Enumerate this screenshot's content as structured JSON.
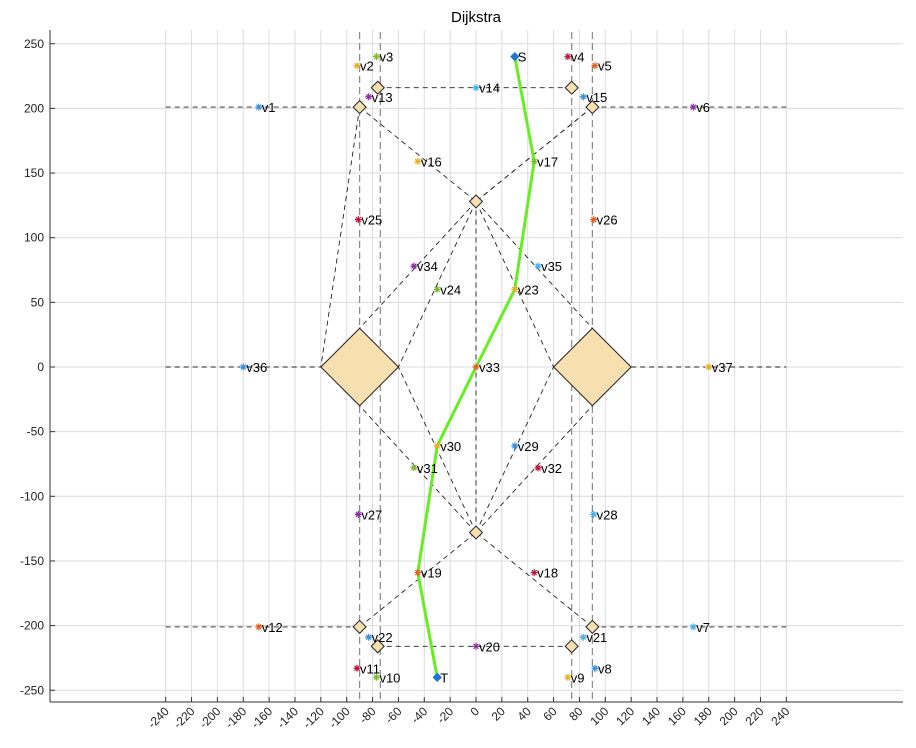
{
  "chart_data": {
    "type": "scatter",
    "title": "Dijkstra",
    "xlabel": "",
    "ylabel": "",
    "xlim": [
      -250,
      250
    ],
    "ylim": [
      -260,
      260
    ],
    "xticks": [
      -240,
      -220,
      -200,
      -180,
      -160,
      -140,
      -120,
      -100,
      -80,
      -60,
      -40,
      -20,
      0,
      20,
      40,
      60,
      80,
      100,
      120,
      140,
      160,
      180,
      200,
      220,
      240
    ],
    "yticks": [
      -250,
      -200,
      -150,
      -100,
      -50,
      0,
      50,
      100,
      150,
      200,
      250
    ],
    "grid": true,
    "colors": {
      "path": "#66ee22",
      "obstacle_fill": "#f7dfb0",
      "endpoint": "#1f77d4"
    },
    "points": [
      {
        "label": "S",
        "x": 30,
        "y": 240,
        "color": "#1f77d4"
      },
      {
        "label": "T",
        "x": -30,
        "y": -240,
        "color": "#1f77d4"
      },
      {
        "label": "v1",
        "x": -168,
        "y": 201,
        "color": "#3b8fd9"
      },
      {
        "label": "v2",
        "x": -92,
        "y": 233,
        "color": "#e8b020"
      },
      {
        "label": "v3",
        "x": -77,
        "y": 240,
        "color": "#7db930"
      },
      {
        "label": "v4",
        "x": 71,
        "y": 240,
        "color": "#c0143c"
      },
      {
        "label": "v5",
        "x": 92,
        "y": 233,
        "color": "#e06020"
      },
      {
        "label": "v6",
        "x": 168,
        "y": 201,
        "color": "#8e2da8"
      },
      {
        "label": "v7",
        "x": 168,
        "y": -201,
        "color": "#4ab0e8"
      },
      {
        "label": "v8",
        "x": 92,
        "y": -233,
        "color": "#3b8fd9"
      },
      {
        "label": "v9",
        "x": 71,
        "y": -240,
        "color": "#e8b020"
      },
      {
        "label": "v10",
        "x": -77,
        "y": -240,
        "color": "#7db930"
      },
      {
        "label": "v11",
        "x": -92,
        "y": -233,
        "color": "#c0143c"
      },
      {
        "label": "v12",
        "x": -168,
        "y": -201,
        "color": "#e06020"
      },
      {
        "label": "v13",
        "x": -83,
        "y": 209,
        "color": "#8e2da8"
      },
      {
        "label": "v14",
        "x": 0,
        "y": 216,
        "color": "#4ab0e8"
      },
      {
        "label": "v15",
        "x": 83,
        "y": 209,
        "color": "#3b8fd9"
      },
      {
        "label": "v16",
        "x": -45,
        "y": 159,
        "color": "#e8b020"
      },
      {
        "label": "v17",
        "x": 45,
        "y": 159,
        "color": "#7db930"
      },
      {
        "label": "v18",
        "x": 45,
        "y": -159,
        "color": "#c0143c"
      },
      {
        "label": "v19",
        "x": -45,
        "y": -159,
        "color": "#e06020"
      },
      {
        "label": "v20",
        "x": 0,
        "y": -216,
        "color": "#8e2da8"
      },
      {
        "label": "v21",
        "x": 83,
        "y": -209,
        "color": "#4ab0e8"
      },
      {
        "label": "v22",
        "x": -83,
        "y": -209,
        "color": "#3b8fd9"
      },
      {
        "label": "v23",
        "x": 30,
        "y": 60,
        "color": "#e8b020"
      },
      {
        "label": "v24",
        "x": -30,
        "y": 60,
        "color": "#7db930"
      },
      {
        "label": "v25",
        "x": -91,
        "y": 114,
        "color": "#c0143c"
      },
      {
        "label": "v26",
        "x": 91,
        "y": 114,
        "color": "#e06020"
      },
      {
        "label": "v27",
        "x": -91,
        "y": -114,
        "color": "#8e2da8"
      },
      {
        "label": "v28",
        "x": 91,
        "y": -114,
        "color": "#4ab0e8"
      },
      {
        "label": "v29",
        "x": 30,
        "y": -61,
        "color": "#3b8fd9"
      },
      {
        "label": "v30",
        "x": -30,
        "y": -61,
        "color": "#e8b020"
      },
      {
        "label": "v31",
        "x": -48,
        "y": -78,
        "color": "#7db930"
      },
      {
        "label": "v32",
        "x": 48,
        "y": -78,
        "color": "#c0143c"
      },
      {
        "label": "v33",
        "x": 0,
        "y": 0,
        "color": "#e06020"
      },
      {
        "label": "v34",
        "x": -48,
        "y": 78,
        "color": "#8e2da8"
      },
      {
        "label": "v35",
        "x": 48,
        "y": 78,
        "color": "#4ab0e8"
      },
      {
        "label": "v36",
        "x": -180,
        "y": 0,
        "color": "#3b8fd9"
      },
      {
        "label": "v37",
        "x": 180,
        "y": 0,
        "color": "#e8b020"
      }
    ],
    "obstacles": [
      {
        "cx": -90,
        "cy": 0,
        "r": 30
      },
      {
        "cx": 90,
        "cy": 0,
        "r": 30
      },
      {
        "cx": 0,
        "cy": 128,
        "r": 5
      },
      {
        "cx": 0,
        "cy": -128,
        "r": 5
      },
      {
        "cx": -90,
        "cy": 201,
        "r": 5
      },
      {
        "cx": 90,
        "cy": 201,
        "r": 5
      },
      {
        "cx": -90,
        "cy": -201,
        "r": 5
      },
      {
        "cx": 90,
        "cy": -201,
        "r": 5
      },
      {
        "cx": -76,
        "cy": 216,
        "r": 5
      },
      {
        "cx": 74,
        "cy": 216,
        "r": 5
      },
      {
        "cx": -76,
        "cy": -216,
        "r": 5
      },
      {
        "cx": 74,
        "cy": -216,
        "r": 5
      }
    ],
    "dashed_lines": [
      {
        "x1": -240,
        "y1": 201,
        "x2": -90,
        "y2": 201
      },
      {
        "x1": 90,
        "y1": 201,
        "x2": 240,
        "y2": 201
      },
      {
        "x1": -240,
        "y1": -201,
        "x2": -90,
        "y2": -201
      },
      {
        "x1": 90,
        "y1": -201,
        "x2": 240,
        "y2": -201
      },
      {
        "x1": -240,
        "y1": 0,
        "x2": -120,
        "y2": 0
      },
      {
        "x1": 120,
        "y1": 0,
        "x2": 240,
        "y2": 0
      },
      {
        "x1": -76,
        "y1": 216,
        "x2": 74,
        "y2": 216
      },
      {
        "x1": -76,
        "y1": -216,
        "x2": 74,
        "y2": -216
      },
      {
        "x1": -90,
        "y1": 201,
        "x2": 0,
        "y2": 128
      },
      {
        "x1": 90,
        "y1": 201,
        "x2": 0,
        "y2": 128
      },
      {
        "x1": -90,
        "y1": -201,
        "x2": 0,
        "y2": -128
      },
      {
        "x1": 90,
        "y1": -201,
        "x2": 0,
        "y2": -128
      },
      {
        "x1": 0,
        "y1": 128,
        "x2": -90,
        "y2": 30
      },
      {
        "x1": 0,
        "y1": 128,
        "x2": 90,
        "y2": 30
      },
      {
        "x1": 0,
        "y1": -128,
        "x2": -90,
        "y2": -30
      },
      {
        "x1": 0,
        "y1": -128,
        "x2": 90,
        "y2": -30
      },
      {
        "x1": 0,
        "y1": 128,
        "x2": -60,
        "y2": 0
      },
      {
        "x1": 0,
        "y1": 128,
        "x2": 60,
        "y2": 0
      },
      {
        "x1": 0,
        "y1": -128,
        "x2": -60,
        "y2": 0
      },
      {
        "x1": 0,
        "y1": -128,
        "x2": 60,
        "y2": 0
      },
      {
        "x1": 0,
        "y1": 128,
        "x2": 0,
        "y2": -128
      },
      {
        "x1": 90,
        "y1": 201,
        "x2": 0,
        "y2": 128
      },
      {
        "x1": -90,
        "y1": 201,
        "x2": -120,
        "y2": 0
      }
    ],
    "boundary_lines_x": [
      -90,
      -74,
      74,
      90
    ],
    "path": [
      {
        "x": 30,
        "y": 240
      },
      {
        "x": 45,
        "y": 159
      },
      {
        "x": 30,
        "y": 60
      },
      {
        "x": 0,
        "y": 0
      },
      {
        "x": -30,
        "y": -61
      },
      {
        "x": -45,
        "y": -159
      },
      {
        "x": -30,
        "y": -240
      }
    ]
  }
}
